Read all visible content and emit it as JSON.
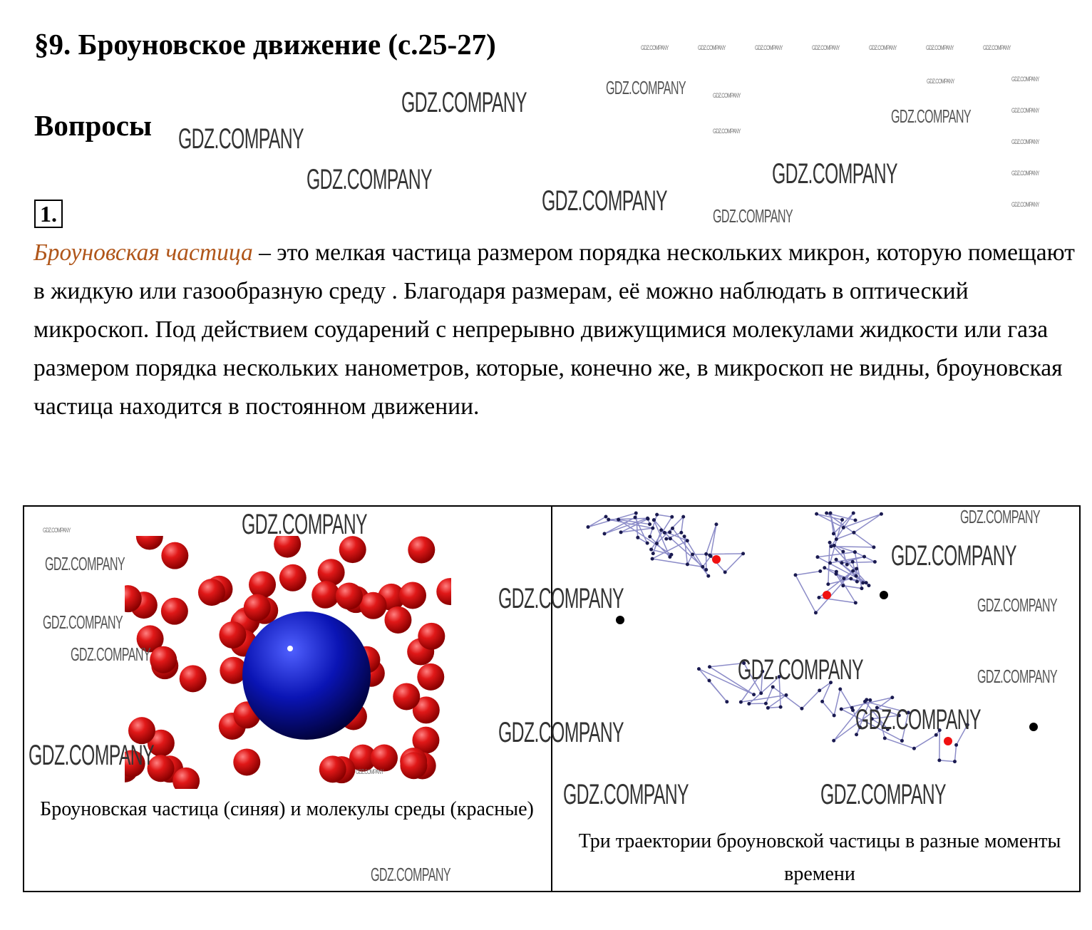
{
  "page": {
    "title": "§9. Броуновское движение (с.25-27)",
    "section": "Вопросы",
    "question_number": "1.",
    "paragraph": {
      "term": "Броуновская частица",
      "text": " – это мелкая частица размером порядка нескольких микрон, которую помещают в жидкую или газообразную среду . Благодаря размерам, её можно наблюдать в оптический микроскоп.  Под действием соударений с непрерывно движущимися молекулами жидкости или газа размером порядка нескольких нанометров, которые, конечно же, в микроскоп не видны, броуновская частица находится в постоянном движении."
    },
    "figures": {
      "left_caption": "Броуновская частица (синяя) и молекулы среды (красные)",
      "right_caption": "Три траектории броуновской частицы в разные моменты времени"
    },
    "colors": {
      "term": "#b0561a",
      "particle": "#0a14b4",
      "molecules": "#e01818",
      "trajectory": "#8c8cc8",
      "points": "#1a1a50"
    },
    "watermark": "GDZ.COMPANY"
  }
}
